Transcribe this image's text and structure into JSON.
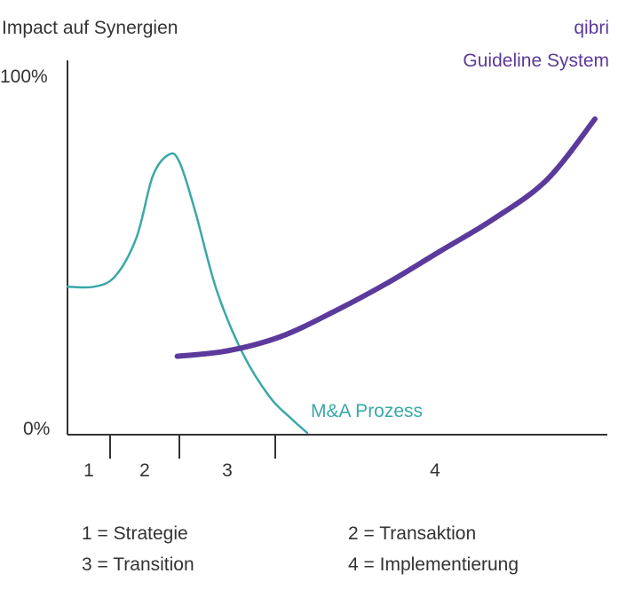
{
  "chart_data": {
    "type": "line",
    "ylabel": "Impact auf Synergien",
    "y_ticks": [
      "100%",
      "0%"
    ],
    "ylim": [
      0,
      100
    ],
    "xlim": [
      0,
      4.95
    ],
    "phases": [
      {
        "label": "1",
        "start": 0.0,
        "end": 0.4
      },
      {
        "label": "2",
        "start": 0.4,
        "end": 1.05
      },
      {
        "label": "3",
        "start": 1.05,
        "end": 1.95
      },
      {
        "label": "4",
        "start": 1.95,
        "end": 4.95
      }
    ],
    "series": [
      {
        "name": "M&A Prozess",
        "label": "M&A Prozess",
        "color": "#3aa8a7",
        "x": [
          0.0,
          0.25,
          0.45,
          0.65,
          0.8,
          0.95,
          1.05,
          1.2,
          1.4,
          1.65,
          1.9,
          2.1,
          2.25
        ],
        "y": [
          41,
          41,
          44,
          55,
          72,
          78,
          76,
          62,
          40,
          22,
          10,
          4,
          0
        ]
      },
      {
        "name": "qibri Guideline System",
        "label_lines": [
          "qibri",
          "Guideline System"
        ],
        "color": "#5b3a9c",
        "x": [
          1.03,
          1.5,
          2.0,
          2.5,
          3.0,
          3.5,
          4.0,
          4.5,
          4.95
        ],
        "y": [
          21.5,
          23,
          27,
          34,
          42,
          51,
          60,
          71,
          88
        ]
      }
    ],
    "legend_items": [
      "1 = Strategie",
      "2 = Transaktion",
      "3 = Transition",
      "4 = Implementierung"
    ]
  }
}
